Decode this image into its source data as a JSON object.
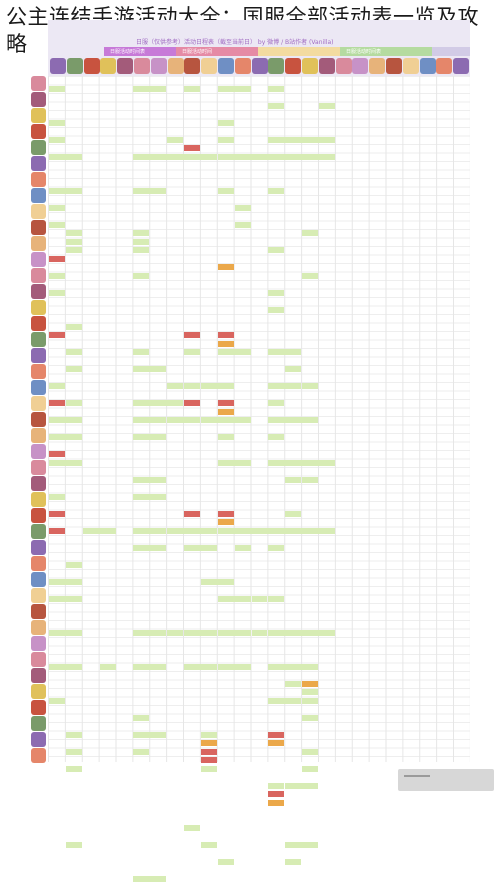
{
  "page": {
    "title": "公主连结手游活动大全：国服全部活动表一览及攻略"
  },
  "sheet": {
    "header_note": "日服（仅供参考）活动日程表（截至当前日）  by 微博 / B站作者 (Vanilla)",
    "header_segments": [
      {
        "label": "日服活动时间表",
        "color": "#c77ad8"
      },
      {
        "label": "日服活动时间",
        "color": "#e58aa5"
      },
      {
        "label": "",
        "color": "#f3dba0"
      },
      {
        "label": "日服活动时间表",
        "color": "#b5dba0"
      },
      {
        "label": "",
        "color": "#d2cbe6"
      }
    ],
    "cell_colors": {
      "green": "#d7ecb4",
      "red": "#d9655f",
      "orange": "#eba84a",
      "pink": "#f2b6c0"
    },
    "avatar_palette": [
      "#c8533f",
      "#e7b37a",
      "#8c6bb1",
      "#d98a9c",
      "#6f8fc4",
      "#e0c15a",
      "#b7553f",
      "#7a9b6a",
      "#c792c7",
      "#e5866a",
      "#a35b7a",
      "#f0cf94"
    ]
  }
}
